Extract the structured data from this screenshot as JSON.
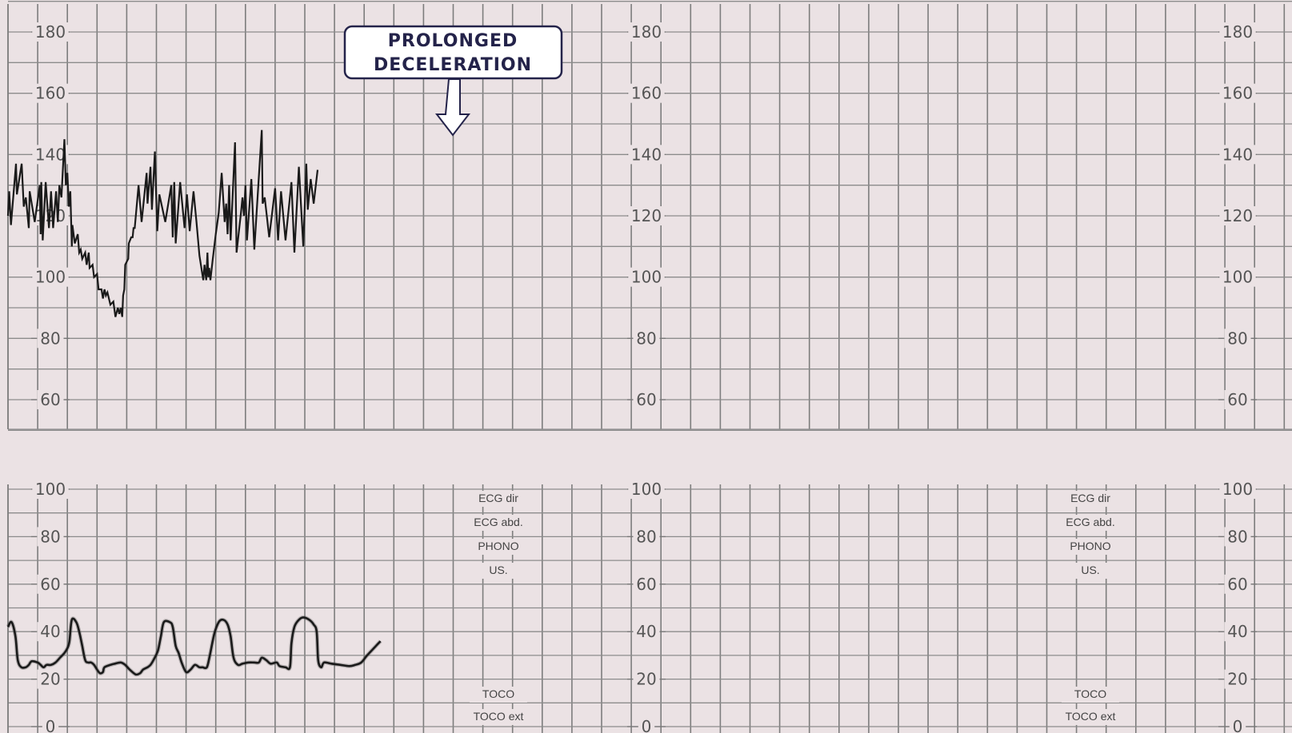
{
  "colors": {
    "paper": "#ebe2e4",
    "grid_minor": "#8a8a8a",
    "grid_major": "#6e6e6e",
    "trace": "#1a1a1a",
    "label": "#555555",
    "callout_text": "#24234a"
  },
  "annotation": {
    "line1": "PROLONGED",
    "line2": "DECELERATION"
  },
  "chart_data": [
    {
      "type": "line",
      "name": "fetal-heart-rate",
      "title": "",
      "ylim": [
        50,
        190
      ],
      "yticks": [
        "180",
        "160",
        "140",
        "120",
        "100",
        "80",
        "60"
      ],
      "grid": true,
      "series": [
        {
          "values": [
            [
              0,
              120
            ],
            [
              0.04,
              128
            ],
            [
              0.1,
              117
            ],
            [
              0.27,
              137
            ],
            [
              0.3,
              127
            ],
            [
              0.46,
              137
            ],
            [
              0.53,
              123
            ],
            [
              0.6,
              126
            ],
            [
              0.7,
              116
            ],
            [
              0.73,
              128
            ],
            [
              0.9,
              118
            ],
            [
              1.07,
              130
            ],
            [
              1.1,
              114
            ],
            [
              1.12,
              131
            ],
            [
              1.17,
              112
            ],
            [
              1.27,
              131
            ],
            [
              1.38,
              116
            ],
            [
              1.45,
              128
            ],
            [
              1.52,
              116
            ],
            [
              1.62,
              128
            ],
            [
              1.68,
              118
            ],
            [
              1.73,
              130
            ],
            [
              1.8,
              126
            ],
            [
              1.9,
              145
            ],
            [
              1.95,
              130
            ],
            [
              2.0,
              134
            ],
            [
              2.05,
              123
            ],
            [
              2.1,
              128
            ],
            [
              2.15,
              110
            ],
            [
              2.17,
              117
            ],
            [
              2.25,
              111
            ],
            [
              2.35,
              114
            ],
            [
              2.4,
              108
            ],
            [
              2.45,
              109
            ],
            [
              2.5,
              106
            ],
            [
              2.6,
              108
            ],
            [
              2.65,
              104
            ],
            [
              2.72,
              108
            ],
            [
              2.75,
              103
            ],
            [
              2.85,
              104
            ],
            [
              2.9,
              100
            ],
            [
              3.0,
              101
            ],
            [
              3.05,
              96
            ],
            [
              3.15,
              96
            ],
            [
              3.2,
              93
            ],
            [
              3.25,
              96
            ],
            [
              3.3,
              94
            ],
            [
              3.35,
              95
            ],
            [
              3.45,
              91
            ],
            [
              3.55,
              92
            ],
            [
              3.62,
              87
            ],
            [
              3.7,
              90
            ],
            [
              3.75,
              88
            ],
            [
              3.8,
              90
            ],
            [
              3.85,
              87
            ],
            [
              3.88,
              94
            ],
            [
              3.92,
              96
            ],
            [
              3.95,
              104
            ],
            [
              4.05,
              106
            ],
            [
              4.07,
              111
            ],
            [
              4.15,
              113
            ],
            [
              4.2,
              113
            ],
            [
              4.23,
              116
            ],
            [
              4.27,
              116
            ],
            [
              4.4,
              130
            ],
            [
              4.5,
              118
            ],
            [
              4.67,
              134
            ],
            [
              4.7,
              124
            ],
            [
              4.8,
              136
            ],
            [
              4.85,
              122
            ],
            [
              4.95,
              141
            ],
            [
              5.03,
              115
            ],
            [
              5.1,
              127
            ],
            [
              5.3,
              118
            ],
            [
              5.5,
              130
            ],
            [
              5.55,
              113
            ],
            [
              5.6,
              131
            ],
            [
              5.65,
              111
            ],
            [
              5.8,
              131
            ],
            [
              5.95,
              116
            ],
            [
              6.03,
              127
            ],
            [
              6.12,
              115
            ],
            [
              6.25,
              128
            ],
            [
              6.35,
              118
            ],
            [
              6.45,
              107
            ],
            [
              6.58,
              99
            ],
            [
              6.62,
              104
            ],
            [
              6.68,
              99
            ],
            [
              6.72,
              108
            ],
            [
              6.75,
              100
            ],
            [
              6.78,
              103
            ],
            [
              6.82,
              99
            ],
            [
              6.9,
              106
            ],
            [
              7.0,
              114
            ],
            [
              7.1,
              121
            ],
            [
              7.2,
              134
            ],
            [
              7.3,
              118
            ],
            [
              7.35,
              124
            ],
            [
              7.4,
              114
            ],
            [
              7.45,
              130
            ],
            [
              7.5,
              112
            ],
            [
              7.65,
              144
            ],
            [
              7.7,
              108
            ],
            [
              7.85,
              121
            ],
            [
              7.9,
              126
            ],
            [
              7.95,
              120
            ],
            [
              8.0,
              130
            ],
            [
              8.05,
              112
            ],
            [
              8.2,
              132
            ],
            [
              8.3,
              109
            ],
            [
              8.55,
              148
            ],
            [
              8.58,
              124
            ],
            [
              8.65,
              126
            ],
            [
              8.8,
              113
            ],
            [
              9.0,
              129
            ],
            [
              9.1,
              112
            ],
            [
              9.2,
              128
            ],
            [
              9.35,
              112
            ],
            [
              9.55,
              131
            ],
            [
              9.65,
              108
            ],
            [
              9.8,
              136
            ],
            [
              9.95,
              110
            ],
            [
              10.05,
              137
            ],
            [
              10.1,
              122
            ],
            [
              10.2,
              132
            ],
            [
              10.3,
              124
            ],
            [
              10.43,
              135
            ]
          ]
        }
      ]
    },
    {
      "type": "line",
      "name": "uterine-activity",
      "title": "",
      "ylim": [
        0,
        100
      ],
      "yticks": [
        "100",
        "80",
        "60",
        "40",
        "20",
        "0"
      ],
      "grid": true,
      "series": [
        {
          "values": [
            [
              0,
              42
            ],
            [
              0.12,
              44
            ],
            [
              0.25,
              38
            ],
            [
              0.33,
              28
            ],
            [
              0.45,
              25
            ],
            [
              0.6,
              25
            ],
            [
              0.7,
              26
            ],
            [
              0.8,
              27.5
            ],
            [
              1.0,
              27
            ],
            [
              1.1,
              26
            ],
            [
              1.2,
              25
            ],
            [
              1.3,
              26
            ],
            [
              1.45,
              26
            ],
            [
              1.6,
              27
            ],
            [
              1.75,
              29
            ],
            [
              1.9,
              31
            ],
            [
              2.0,
              33
            ],
            [
              2.07,
              36
            ],
            [
              2.15,
              45
            ],
            [
              2.3,
              44
            ],
            [
              2.4,
              40
            ],
            [
              2.5,
              34
            ],
            [
              2.6,
              28
            ],
            [
              2.7,
              27
            ],
            [
              2.8,
              27
            ],
            [
              2.9,
              26
            ],
            [
              3.0,
              24
            ],
            [
              3.1,
              22.5
            ],
            [
              3.2,
              23
            ],
            [
              3.25,
              25
            ],
            [
              3.45,
              26
            ],
            [
              3.6,
              26.5
            ],
            [
              3.8,
              27
            ],
            [
              3.95,
              26
            ],
            [
              4.1,
              24
            ],
            [
              4.3,
              22
            ],
            [
              4.45,
              22.5
            ],
            [
              4.55,
              24
            ],
            [
              4.7,
              25
            ],
            [
              4.8,
              26
            ],
            [
              4.9,
              28
            ],
            [
              5.05,
              32
            ],
            [
              5.15,
              38
            ],
            [
              5.25,
              44
            ],
            [
              5.45,
              44
            ],
            [
              5.55,
              42
            ],
            [
              5.65,
              34
            ],
            [
              5.75,
              31
            ],
            [
              5.85,
              27
            ],
            [
              6.0,
              23
            ],
            [
              6.15,
              24
            ],
            [
              6.3,
              26
            ],
            [
              6.45,
              25
            ],
            [
              6.55,
              25
            ],
            [
              6.7,
              25
            ],
            [
              6.8,
              30
            ],
            [
              6.95,
              39
            ],
            [
              7.1,
              44
            ],
            [
              7.25,
              45
            ],
            [
              7.4,
              43
            ],
            [
              7.5,
              38
            ],
            [
              7.6,
              29
            ],
            [
              7.75,
              26
            ],
            [
              7.9,
              26.5
            ],
            [
              8.1,
              27
            ],
            [
              8.3,
              27
            ],
            [
              8.45,
              27
            ],
            [
              8.55,
              29
            ],
            [
              8.7,
              28
            ],
            [
              8.85,
              26.5
            ],
            [
              9.05,
              27
            ],
            [
              9.15,
              25.5
            ],
            [
              9.35,
              25
            ],
            [
              9.5,
              25
            ],
            [
              9.55,
              35
            ],
            [
              9.65,
              42
            ],
            [
              9.8,
              45
            ],
            [
              9.95,
              46
            ],
            [
              10.15,
              45
            ],
            [
              10.3,
              43
            ],
            [
              10.4,
              40
            ],
            [
              10.45,
              28
            ],
            [
              10.55,
              25
            ],
            [
              10.65,
              27
            ],
            [
              10.9,
              26.5
            ],
            [
              11.2,
              26
            ],
            [
              11.5,
              25.5
            ],
            [
              11.7,
              26
            ],
            [
              11.9,
              27
            ],
            [
              12.1,
              30
            ],
            [
              12.4,
              34
            ],
            [
              12.55,
              36
            ]
          ]
        }
      ],
      "mode_labels_top": [
        "ECG dir",
        "ECG abd.",
        "PHONO",
        "US."
      ],
      "mode_labels_bottom": [
        "TOCO",
        "TOCO ext"
      ]
    }
  ]
}
